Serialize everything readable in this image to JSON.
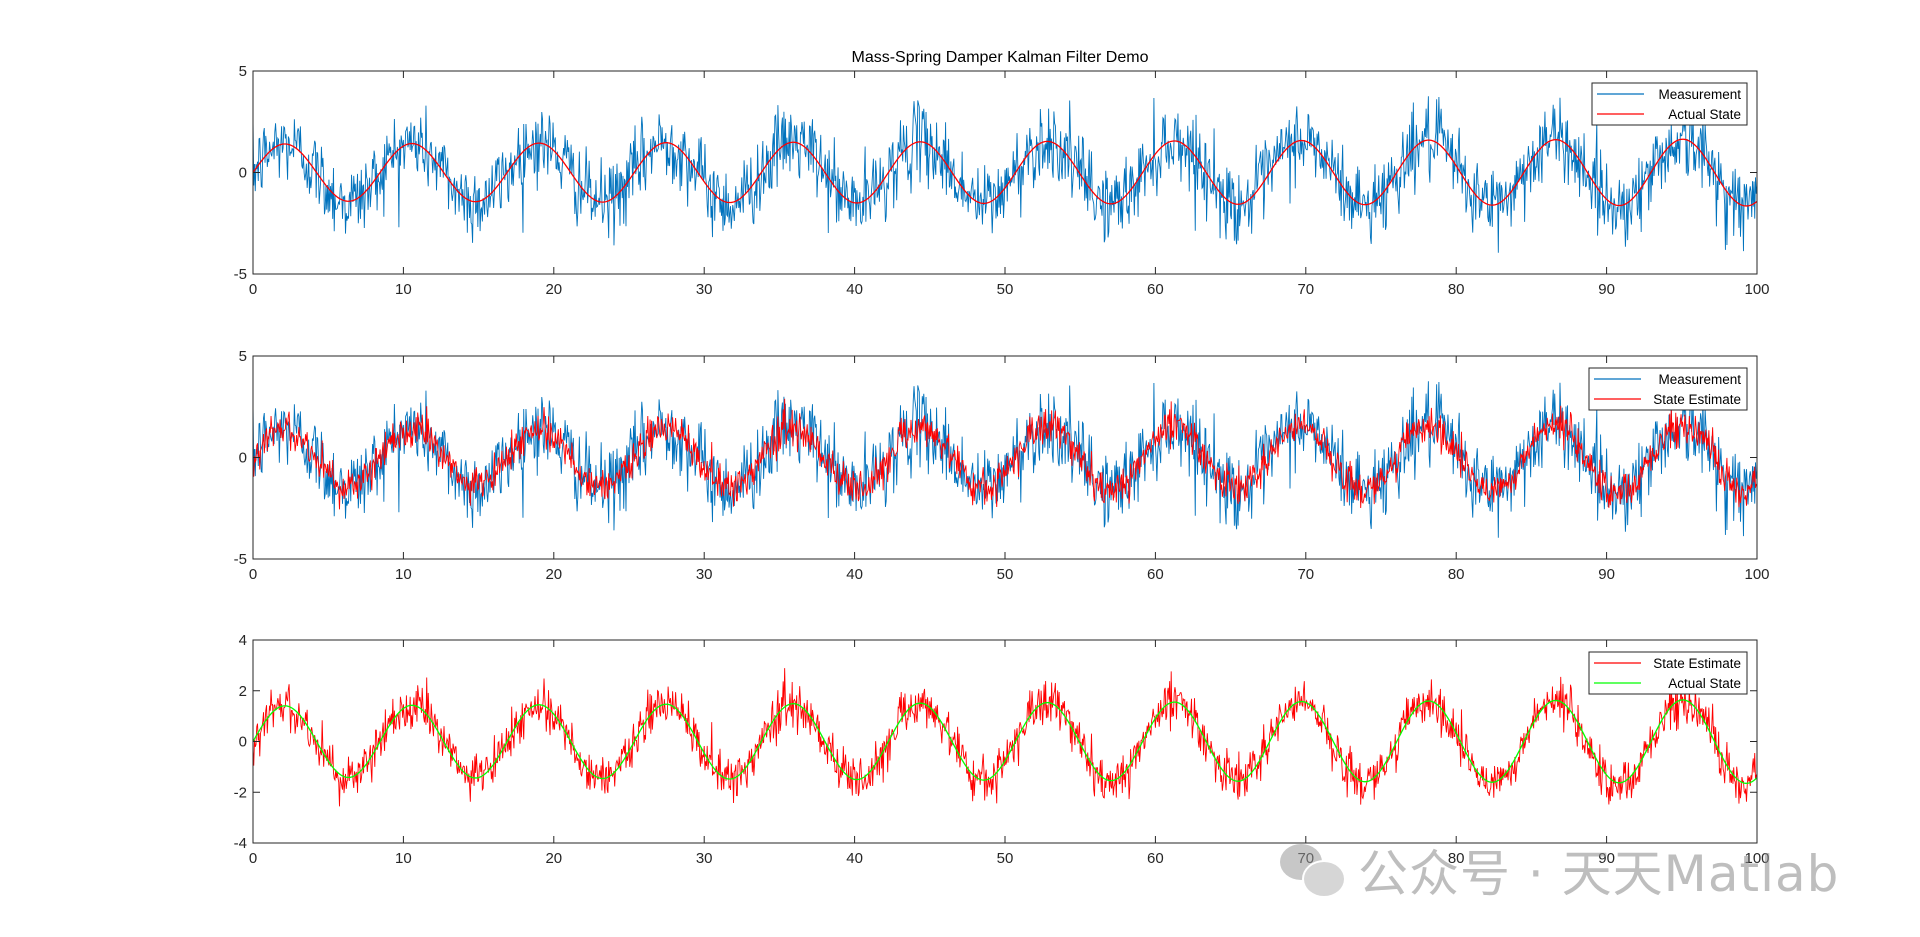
{
  "figure": {
    "title": "Mass-Spring Damper Kalman Filter Demo",
    "watermark": "公众号 · 天天Matlab"
  },
  "chart_data": [
    {
      "type": "line",
      "title": "Mass-Spring Damper Kalman Filter Demo",
      "xlabel": "",
      "ylabel": "",
      "xlim": [
        0,
        100
      ],
      "ylim": [
        -5,
        5
      ],
      "xticks": [
        0,
        10,
        20,
        30,
        40,
        50,
        60,
        70,
        80,
        90,
        100
      ],
      "yticks": [
        -5,
        0,
        5
      ],
      "legend_position": "top-right",
      "signal": {
        "period": 8.45,
        "amplitude_start": 1.4,
        "amplitude_end": 1.65
      },
      "series": [
        {
          "name": "Measurement",
          "color": "#0072BD",
          "kind": "noisy",
          "noise_std": 0.95
        },
        {
          "name": "Actual State",
          "color": "#FF0000",
          "kind": "clean"
        }
      ]
    },
    {
      "type": "line",
      "title": "",
      "xlabel": "",
      "ylabel": "",
      "xlim": [
        0,
        100
      ],
      "ylim": [
        -5,
        5
      ],
      "xticks": [
        0,
        10,
        20,
        30,
        40,
        50,
        60,
        70,
        80,
        90,
        100
      ],
      "yticks": [
        -5,
        0,
        5
      ],
      "legend_position": "top-right",
      "signal": {
        "period": 8.45,
        "amplitude_start": 1.4,
        "amplitude_end": 1.65
      },
      "series": [
        {
          "name": "Measurement",
          "color": "#0072BD",
          "kind": "noisy",
          "noise_std": 0.95
        },
        {
          "name": "State Estimate",
          "color": "#FF0000",
          "kind": "noisy",
          "noise_std": 0.45
        }
      ]
    },
    {
      "type": "line",
      "title": "",
      "xlabel": "",
      "ylabel": "",
      "xlim": [
        0,
        100
      ],
      "ylim": [
        -4,
        4
      ],
      "xticks": [
        0,
        10,
        20,
        30,
        40,
        50,
        60,
        70,
        80,
        90,
        100
      ],
      "yticks": [
        -4,
        -2,
        0,
        2,
        4
      ],
      "legend_position": "top-right",
      "signal": {
        "period": 8.45,
        "amplitude_start": 1.4,
        "amplitude_end": 1.65
      },
      "series": [
        {
          "name": "State Estimate",
          "color": "#FF0000",
          "kind": "noisy",
          "noise_std": 0.45
        },
        {
          "name": "Actual State",
          "color": "#00FF00",
          "kind": "clean"
        }
      ]
    }
  ]
}
